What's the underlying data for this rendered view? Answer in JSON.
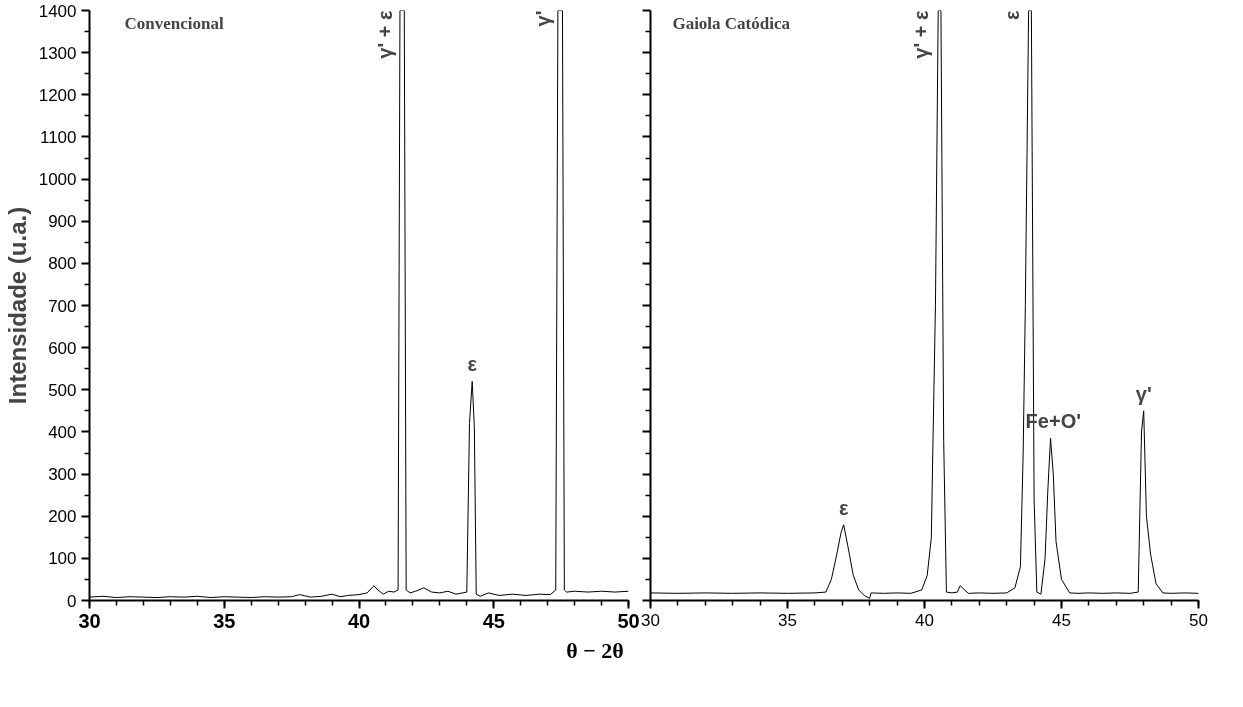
{
  "chart_data": [
    {
      "type": "line",
      "title": "Convencional",
      "ylabel": "Intensidade (u.a.)",
      "xlabel": "θ − 2θ",
      "xlim": [
        30,
        50
      ],
      "xticks": [
        30,
        35,
        40,
        45,
        50
      ],
      "ylim": [
        0,
        1400
      ],
      "yticks": [
        0,
        100,
        200,
        300,
        400,
        500,
        600,
        700,
        800,
        900,
        1000,
        1100,
        1200,
        1300,
        1400
      ],
      "series": [
        {
          "color": "#000000",
          "x": [
            30,
            30.5,
            31,
            31.5,
            32,
            32.5,
            33,
            33.5,
            34,
            34.5,
            35,
            35.5,
            36,
            36.5,
            37,
            37.5,
            37.8,
            38.2,
            38.6,
            39,
            39.3,
            39.6,
            40,
            40.3,
            40.55,
            40.7,
            40.9,
            41.1,
            41.3,
            41.45,
            41.52,
            41.6,
            41.68,
            41.75,
            41.9,
            42.1,
            42.4,
            42.7,
            43,
            43.3,
            43.6,
            44.0,
            44.1,
            44.2,
            44.28,
            44.35,
            44.5,
            44.8,
            45.2,
            45.7,
            46.2,
            46.7,
            47.1,
            47.3,
            47.38,
            47.45,
            47.55,
            47.62,
            47.7,
            48,
            48.5,
            49,
            49.5,
            50
          ],
          "values": [
            8,
            10,
            7,
            9,
            8,
            7,
            9,
            8,
            10,
            7,
            9,
            8,
            7,
            9,
            8,
            9,
            14,
            8,
            10,
            15,
            9,
            12,
            14,
            18,
            35,
            25,
            15,
            22,
            20,
            25,
            1400,
            1400,
            1400,
            25,
            18,
            22,
            30,
            20,
            18,
            22,
            15,
            20,
            420,
            520,
            410,
            15,
            10,
            18,
            12,
            15,
            12,
            15,
            14,
            25,
            1400,
            1400,
            1400,
            25,
            20,
            22,
            20,
            22,
            20,
            22
          ]
        }
      ],
      "annotations": [
        {
          "text": "γ' + ε",
          "x": 41.6,
          "y": 1400
        },
        {
          "text": "γ'",
          "x": 47.45,
          "y": 1400
        },
        {
          "text": "ε",
          "x": 44.2,
          "y": 520
        }
      ]
    },
    {
      "type": "line",
      "title": "Gaiola Catódica",
      "tick_labels": "x",
      "xlim": [
        30,
        50
      ],
      "xticks": [
        30,
        35,
        40,
        45,
        50
      ],
      "ylim": [
        0,
        1400
      ],
      "yticks": [
        0,
        100,
        200,
        300,
        400,
        500,
        600,
        700,
        800,
        900,
        1000,
        1100,
        1200,
        1300,
        1400
      ],
      "series": [
        {
          "color": "#000000",
          "x": [
            30,
            31,
            32,
            33,
            34,
            35,
            36,
            36.4,
            36.6,
            36.8,
            36.95,
            37.05,
            37.2,
            37.4,
            37.6,
            37.8,
            38.0,
            38.05,
            38.5,
            39,
            39.5,
            39.9,
            40.1,
            40.25,
            40.3,
            40.4,
            40.5,
            40.6,
            40.7,
            40.8,
            41.0,
            41.2,
            41.3,
            41.6,
            42,
            42.5,
            43,
            43.3,
            43.5,
            43.6,
            43.68,
            43.8,
            43.9,
            44.0,
            44.1,
            44.25,
            44.4,
            44.5,
            44.6,
            44.7,
            44.8,
            45.0,
            45.3,
            45.6,
            46,
            46.5,
            47,
            47.5,
            47.8,
            47.92,
            48.0,
            48.1,
            48.25,
            48.45,
            48.7,
            49,
            49.5,
            50
          ],
          "values": [
            18,
            17,
            18,
            17,
            18,
            17,
            18,
            20,
            50,
            110,
            160,
            180,
            130,
            60,
            25,
            12,
            5,
            18,
            17,
            18,
            17,
            25,
            60,
            150,
            345,
            700,
            1400,
            1400,
            380,
            20,
            18,
            20,
            35,
            17,
            18,
            17,
            18,
            30,
            80,
            345,
            700,
            1400,
            1400,
            240,
            20,
            15,
            100,
            260,
            385,
            300,
            140,
            50,
            18,
            17,
            18,
            17,
            18,
            17,
            20,
            400,
            450,
            200,
            110,
            40,
            18,
            17,
            18,
            17
          ]
        }
      ],
      "annotations": [
        {
          "text": "ε",
          "x": 37.05,
          "y": 180
        },
        {
          "text": "γ' + ε",
          "x": 40.5,
          "y": 1400
        },
        {
          "text": "ε",
          "x": 43.8,
          "y": 1400
        },
        {
          "text": "Fe+O'",
          "x": 44.7,
          "y": 385
        },
        {
          "text": "γ'",
          "x": 48.0,
          "y": 450
        }
      ]
    }
  ]
}
